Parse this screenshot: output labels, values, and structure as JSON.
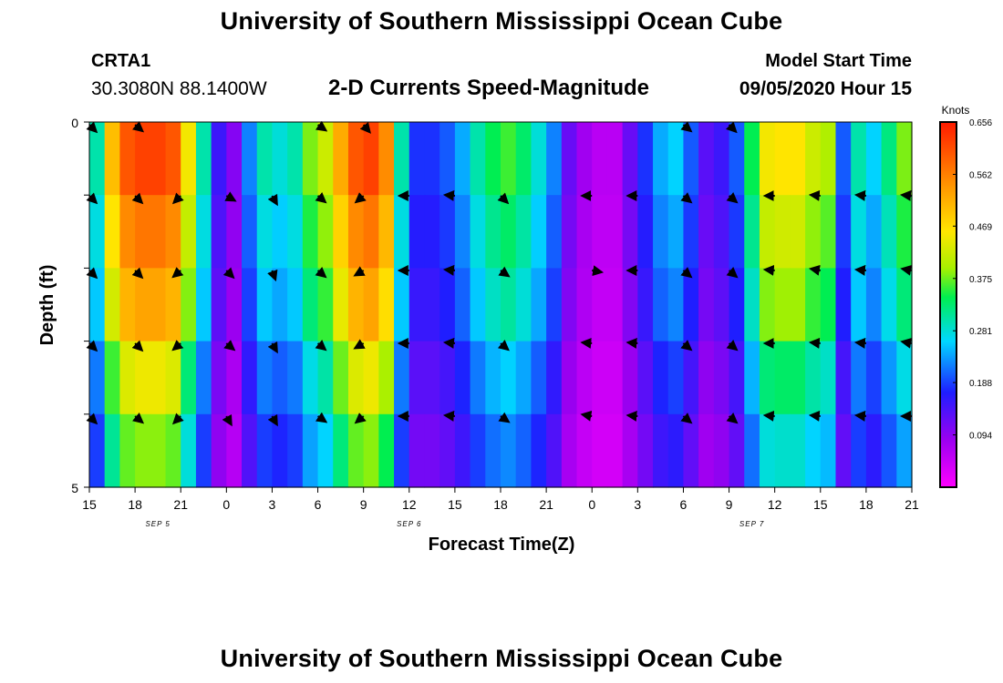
{
  "header": {
    "title": "University of Southern Mississippi Ocean Cube",
    "footer_title": "University of Southern Mississippi Ocean Cube",
    "station_id": "CRTA1",
    "station_coords": "30.3080N 88.1400W",
    "plot_title": "2-D Currents Speed-Magnitude",
    "model_start_label": "Model Start Time",
    "model_start_value": "09/05/2020 Hour 15"
  },
  "chart_data": {
    "type": "heatmap",
    "title": "2-D Currents Speed-Magnitude",
    "xlabel": "Forecast Time(Z)",
    "ylabel": "Depth (ft)",
    "ylim": [
      0,
      5
    ],
    "y_tick_labels": [
      "0",
      "5"
    ],
    "x_tick_labels": [
      "15",
      "18",
      "21",
      "0",
      "3",
      "6",
      "9",
      "12",
      "15",
      "18",
      "21",
      "0",
      "3",
      "6",
      "9",
      "12",
      "15",
      "18",
      "21"
    ],
    "date_labels": [
      {
        "label": "SEP 5",
        "hour_index": 4.5
      },
      {
        "label": "SEP 6",
        "hour_index": 21
      },
      {
        "label": "SEP 7",
        "hour_index": 43.5
      }
    ],
    "colorbar": {
      "unit": "Knots",
      "min": 0.0,
      "max": 0.656,
      "tick_labels": [
        "0.656",
        "0.562",
        "0.469",
        "0.375",
        "0.281",
        "0.188",
        "0.094"
      ],
      "tick_values": [
        0.656,
        0.562,
        0.469,
        0.375,
        0.281,
        0.188,
        0.094
      ]
    },
    "hours": 54,
    "depth_levels": 5,
    "speed_profile_knots": [
      0.3,
      0.5,
      0.6,
      0.62,
      0.62,
      0.6,
      0.45,
      0.3,
      0.15,
      0.1,
      0.22,
      0.3,
      0.28,
      0.3,
      0.38,
      0.42,
      0.52,
      0.6,
      0.62,
      0.55,
      0.3,
      0.18,
      0.18,
      0.2,
      0.24,
      0.3,
      0.34,
      0.36,
      0.33,
      0.28,
      0.22,
      0.12,
      0.08,
      0.06,
      0.06,
      0.12,
      0.18,
      0.24,
      0.26,
      0.2,
      0.13,
      0.15,
      0.2,
      0.34,
      0.45,
      0.46,
      0.46,
      0.42,
      0.4,
      0.2,
      0.3,
      0.26,
      0.32,
      0.38
    ],
    "depth_factors": [
      1.0,
      0.92,
      0.85,
      0.72,
      0.62
    ],
    "arrow_hours": [
      0,
      3,
      6,
      9,
      12,
      15,
      18,
      21,
      24,
      27,
      30,
      33,
      36,
      39,
      42,
      45,
      48,
      51,
      54
    ],
    "arrow_angles_deg": [
      [
        -45,
        -45,
        -45,
        -45,
        -45
      ],
      [
        -40,
        -45,
        -45,
        -45,
        -40
      ],
      [
        null,
        -135,
        -140,
        -140,
        -135
      ],
      [
        null,
        -30,
        -45,
        -40,
        -60
      ],
      [
        null,
        -60,
        -70,
        -60,
        -60
      ],
      [
        -35,
        -40,
        -40,
        -40,
        -35
      ],
      [
        -50,
        -140,
        -150,
        -150,
        -140
      ],
      [
        null,
        180,
        180,
        180,
        180
      ],
      [
        null,
        175,
        175,
        175,
        175
      ],
      [
        null,
        -45,
        -35,
        -40,
        -35
      ],
      [
        null,
        null,
        null,
        null,
        null
      ],
      [
        null,
        180,
        -10,
        175,
        170
      ],
      [
        null,
        180,
        180,
        175,
        175
      ],
      [
        -40,
        -40,
        -40,
        -40,
        -40
      ],
      [
        -45,
        -40,
        -40,
        -40,
        -40
      ],
      [
        null,
        180,
        175,
        180,
        175
      ],
      [
        null,
        175,
        170,
        175,
        175
      ],
      [
        null,
        175,
        175,
        175,
        175
      ],
      [
        null,
        175,
        170,
        170,
        180
      ]
    ]
  }
}
